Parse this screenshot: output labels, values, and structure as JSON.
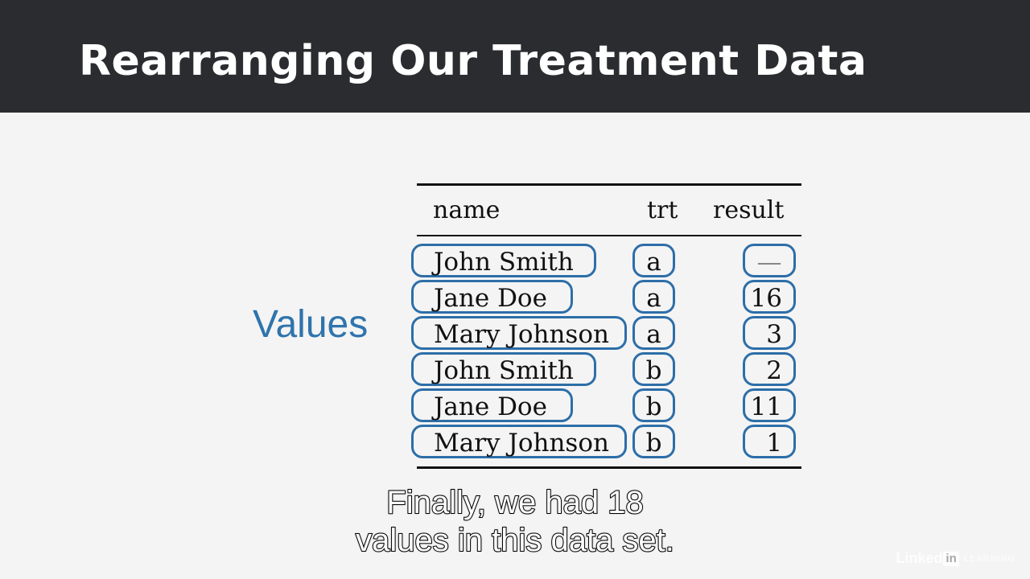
{
  "slide": {
    "title": "Rearranging Our Treatment Data",
    "side_label": "Values"
  },
  "table": {
    "headers": {
      "name": "name",
      "trt": "trt",
      "result": "result"
    },
    "rows": [
      {
        "name": "John Smith",
        "trt": "a",
        "result": "—"
      },
      {
        "name": "Jane Doe",
        "trt": "a",
        "result": "16"
      },
      {
        "name": "Mary Johnson",
        "trt": "a",
        "result": "3"
      },
      {
        "name": "John Smith",
        "trt": "b",
        "result": "2"
      },
      {
        "name": "Jane Doe",
        "trt": "b",
        "result": "11"
      },
      {
        "name": "Mary Johnson",
        "trt": "b",
        "result": "1"
      }
    ],
    "highlight_color": "#2d6ea8"
  },
  "caption": {
    "line1": "Finally, we had 18",
    "line2": "values in this data set."
  },
  "brand": {
    "linked": "Linked",
    "in": "in",
    "learning": "LEARNING"
  },
  "colors": {
    "title_bar": "#2b2c30",
    "background": "#f4f4f4",
    "accent": "#2f74ad"
  }
}
